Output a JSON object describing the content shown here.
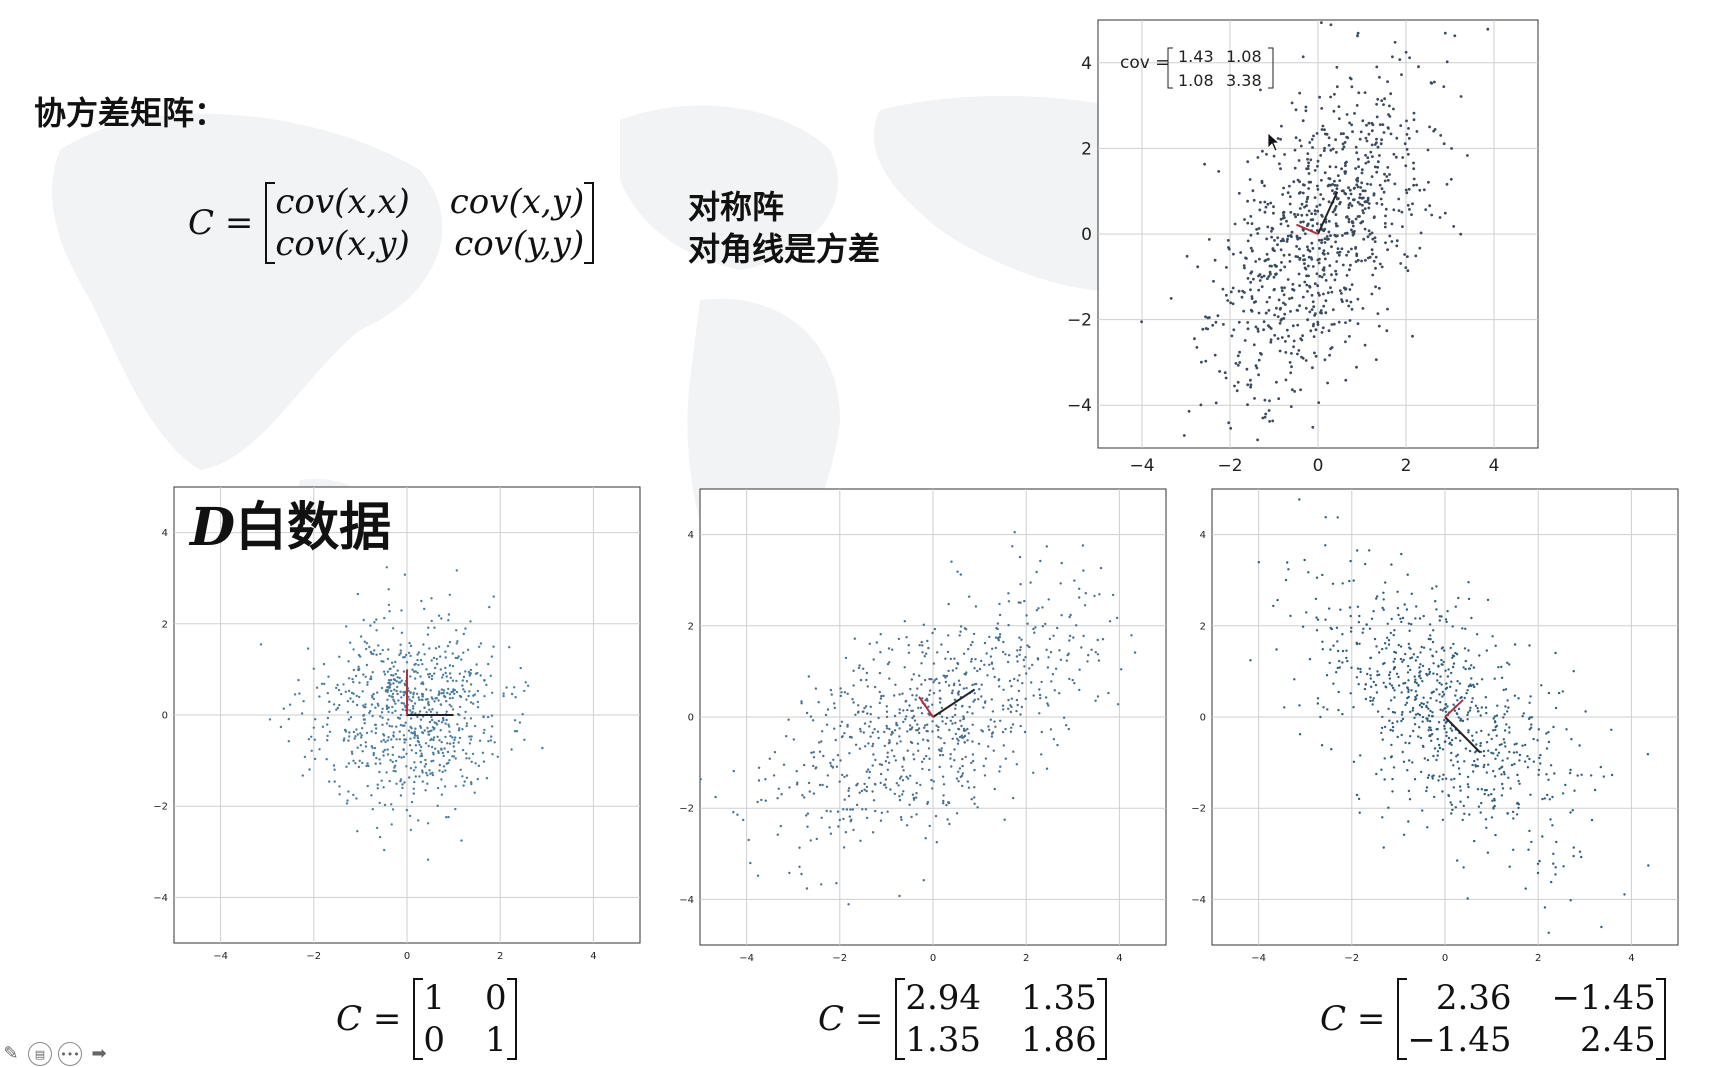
{
  "slide": {
    "title": "协方差矩阵：",
    "formula": {
      "lhs": "C =",
      "entries": [
        "cov(x,x)",
        "cov(x,y)",
        "cov(x,y)",
        "cov(y,y)"
      ]
    },
    "notes": [
      "对称阵",
      "对角线是方差"
    ],
    "panel_label": {
      "symbol": "D",
      "text": "白数据"
    },
    "cursor_icon": "mouse-pointer-icon",
    "nav_icons": [
      "pen-icon",
      "slides-icon",
      "more-icon",
      "next-icon"
    ]
  },
  "chart_data": [
    {
      "id": "top",
      "type": "scatter",
      "title": "",
      "xlabel": "",
      "ylabel": "",
      "xlim": [
        -5,
        5
      ],
      "ylim": [
        -5,
        5
      ],
      "xticks": [
        "−4",
        "−2",
        "0",
        "2",
        "4"
      ],
      "yticks": [
        "4",
        "2",
        "0",
        "−2",
        "−4"
      ],
      "grid": true,
      "n_points": 900,
      "covariance": [
        [
          1.43,
          1.08
        ],
        [
          1.08,
          3.38
        ]
      ],
      "annotation": {
        "label": "cov =",
        "values": [
          "1.43",
          "1.08",
          "1.08",
          "3.38"
        ]
      },
      "eigen_lines": {
        "colors": [
          "#222222",
          "#b03040"
        ]
      },
      "point_color": "#3b4a5c"
    },
    {
      "id": "white",
      "type": "scatter",
      "xlim": [
        -5,
        5
      ],
      "ylim": [
        -5,
        5
      ],
      "xticks": [
        "−4",
        "−2",
        "0",
        "2",
        "4"
      ],
      "yticks": [
        "4",
        "2",
        "0",
        "−2",
        "−4"
      ],
      "grid": true,
      "n_points": 800,
      "covariance": [
        [
          1,
          0
        ],
        [
          0,
          1
        ]
      ],
      "eigen_lines": {
        "colors": [
          "#222222",
          "#b03040"
        ]
      },
      "point_color": "#4a7d9c",
      "matrix_label": {
        "lhs": "C =",
        "values": [
          "1",
          "0",
          "0",
          "1"
        ]
      }
    },
    {
      "id": "pos",
      "type": "scatter",
      "xlim": [
        -5,
        5
      ],
      "ylim": [
        -5,
        5
      ],
      "xticks": [
        "−4",
        "−2",
        "0",
        "2",
        "4"
      ],
      "yticks": [
        "4",
        "2",
        "0",
        "−2",
        "−4"
      ],
      "grid": true,
      "n_points": 800,
      "covariance": [
        [
          2.94,
          1.35
        ],
        [
          1.35,
          1.86
        ]
      ],
      "eigen_lines": {
        "colors": [
          "#222222",
          "#b03040"
        ]
      },
      "point_color": "#4a6e8c",
      "matrix_label": {
        "lhs": "C =",
        "values": [
          "2.94",
          "1.35",
          "1.35",
          "1.86"
        ]
      }
    },
    {
      "id": "neg",
      "type": "scatter",
      "xlim": [
        -5,
        5
      ],
      "ylim": [
        -5,
        5
      ],
      "xticks": [
        "−4",
        "−2",
        "0",
        "2",
        "4"
      ],
      "yticks": [
        "4",
        "2",
        "0",
        "−2",
        "−4"
      ],
      "grid": true,
      "n_points": 800,
      "covariance": [
        [
          2.36,
          -1.45
        ],
        [
          -1.45,
          2.45
        ]
      ],
      "eigen_lines": {
        "colors": [
          "#222222",
          "#b03040"
        ]
      },
      "point_color": "#2e5e7a",
      "matrix_label": {
        "lhs": "C =",
        "values": [
          "2.36",
          "−1.45",
          "−1.45",
          "2.45"
        ]
      }
    }
  ]
}
